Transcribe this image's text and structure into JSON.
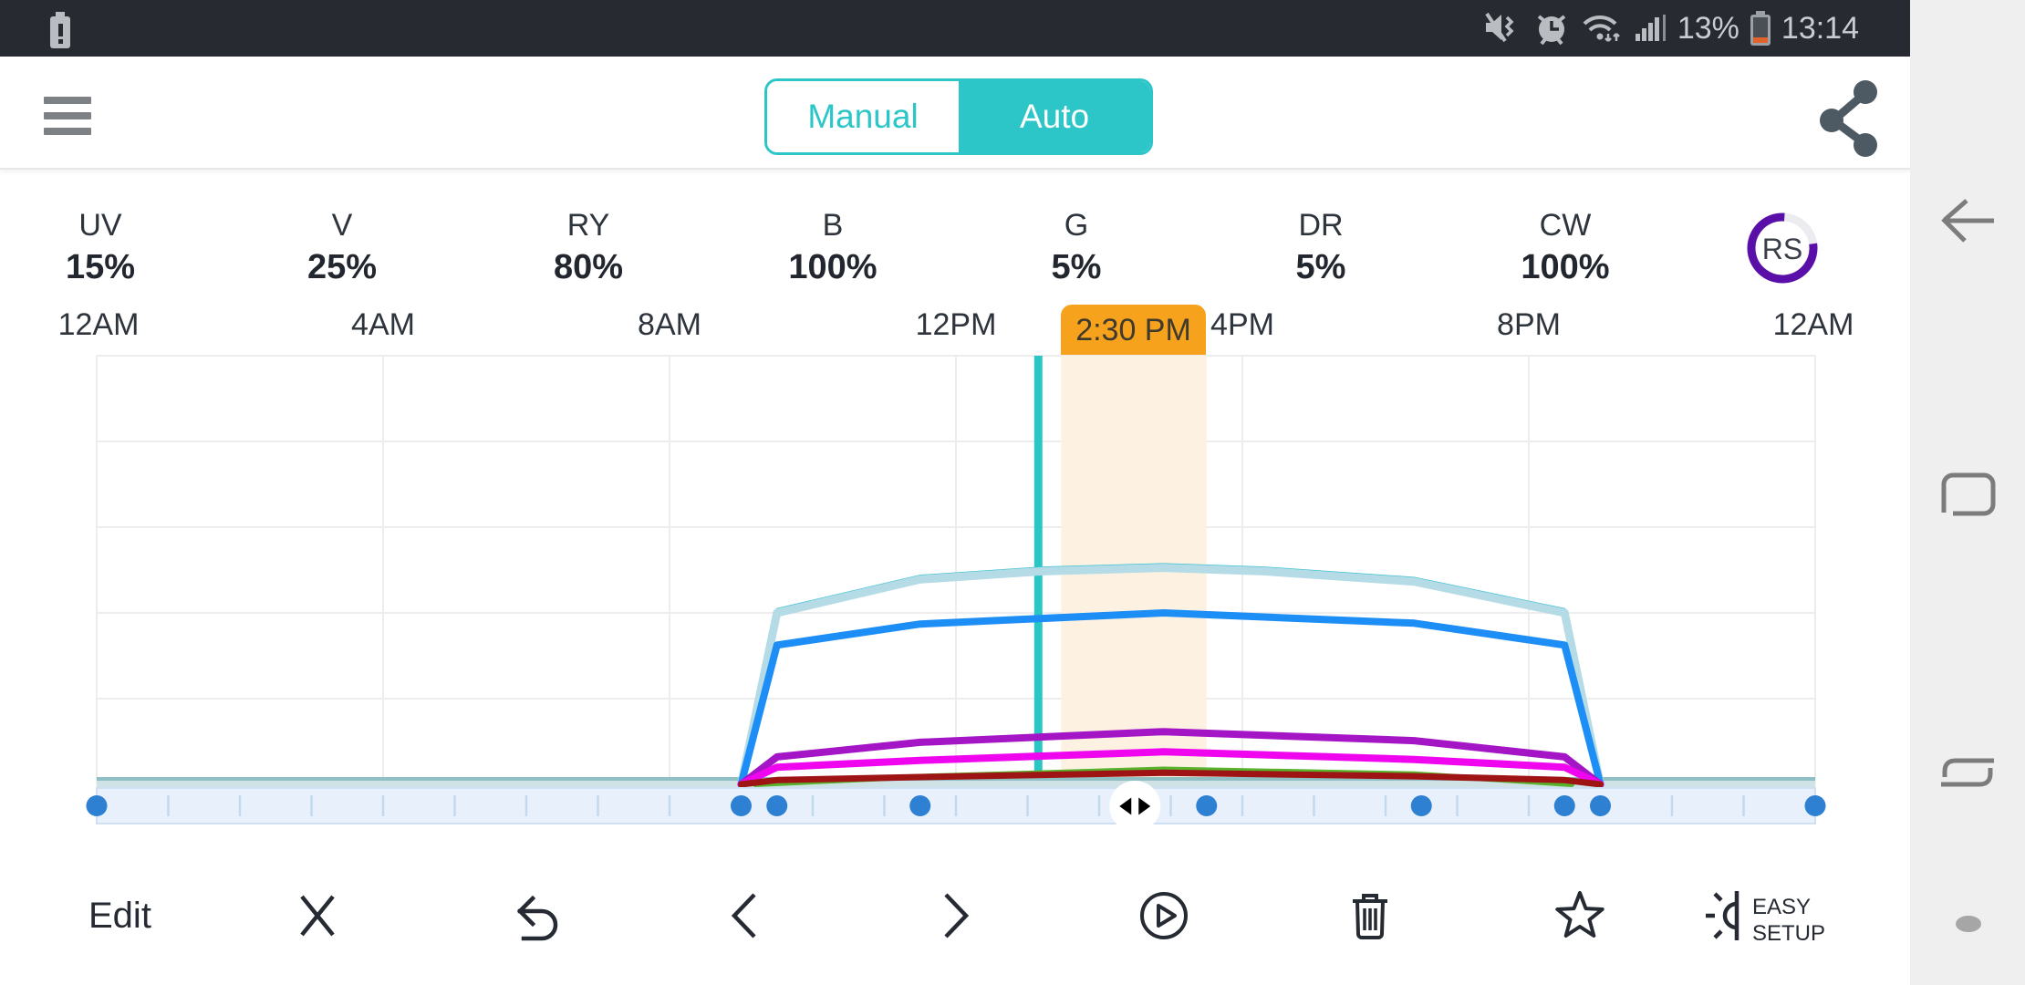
{
  "status_bar": {
    "time": "13:14",
    "battery_percent": "13%",
    "icons": [
      "battery-alert",
      "mute-vibrate",
      "alarm",
      "wifi",
      "signal-strength",
      "battery"
    ]
  },
  "header": {
    "menu_icon": "hamburger-menu",
    "toggle": {
      "options": [
        "Manual",
        "Auto"
      ],
      "selected": "Auto",
      "accent_color": "#2cc6c8"
    },
    "share_icon": "share"
  },
  "channels": {
    "items": [
      {
        "name": "UV",
        "value": "15%"
      },
      {
        "name": "V",
        "value": "25%"
      },
      {
        "name": "RY",
        "value": "80%"
      },
      {
        "name": "B",
        "value": "100%"
      },
      {
        "name": "G",
        "value": "5%"
      },
      {
        "name": "DR",
        "value": "5%"
      },
      {
        "name": "CW",
        "value": "100%"
      }
    ],
    "rs_badge": {
      "label": "RS",
      "ring_color": "#5a0fa8",
      "track_color": "#ececf0",
      "progress": 0.78
    }
  },
  "time_axis": {
    "labels": [
      "12AM",
      "4AM",
      "8AM",
      "12PM",
      "4PM",
      "8PM",
      "12AM"
    ],
    "marker_label": "2:30 PM",
    "marker_color": "#f6a21d"
  },
  "chart_data": {
    "type": "line",
    "x_unit": "hour",
    "x_range": [
      0,
      24
    ],
    "y_range_pct": [
      0,
      100
    ],
    "grid_step_pct": 20,
    "grid_step_hours": 4,
    "grid_on": true,
    "current_time_hour": 13.15,
    "current_time_color": "#2cc5c6",
    "marker_hour": 14.5,
    "marker_band_hours": [
      13.47,
      15.5
    ],
    "band_color": "#fdf2e2",
    "baseline": {
      "edge_color": "#8fbfc2",
      "color": "#cfe3e7"
    },
    "series": [
      {
        "name": "pale-blue",
        "color": "#b5dbe7",
        "edge_color": "#41c2d3",
        "width": 9,
        "points": [
          [
            9,
            0
          ],
          [
            9.5,
            40
          ],
          [
            11.5,
            47.8
          ],
          [
            13.2,
            49.7
          ],
          [
            14.9,
            50.5
          ],
          [
            16.3,
            49.7
          ],
          [
            18.4,
            47.3
          ],
          [
            20.5,
            40
          ],
          [
            21,
            0
          ]
        ]
      },
      {
        "name": "blue",
        "color": "#1e8ef7",
        "width": 8,
        "points": [
          [
            9,
            0
          ],
          [
            9.5,
            32.5
          ],
          [
            11.5,
            37.4
          ],
          [
            14.9,
            40
          ],
          [
            18.4,
            37.6
          ],
          [
            20.5,
            32.5
          ],
          [
            21,
            0
          ]
        ]
      },
      {
        "name": "purple",
        "color": "#a415c6",
        "width": 8,
        "points": [
          [
            9,
            0
          ],
          [
            9.5,
            6.4
          ],
          [
            11.5,
            9.8
          ],
          [
            14.9,
            12.3
          ],
          [
            18.4,
            10.2
          ],
          [
            20.5,
            6.4
          ],
          [
            21,
            0
          ]
        ]
      },
      {
        "name": "magenta",
        "color": "#ef06ef",
        "width": 8,
        "points": [
          [
            9,
            0
          ],
          [
            9.5,
            4
          ],
          [
            11.5,
            5.6
          ],
          [
            14.9,
            7.6
          ],
          [
            18.4,
            5.8
          ],
          [
            20.5,
            4
          ],
          [
            21,
            0
          ]
        ]
      },
      {
        "name": "green",
        "color": "#58b32d",
        "width": 6,
        "points": [
          [
            9.2,
            0
          ],
          [
            11.5,
            1.8
          ],
          [
            14.9,
            3.5
          ],
          [
            18.4,
            2.4
          ],
          [
            20.6,
            0
          ]
        ]
      },
      {
        "name": "dark-red",
        "color": "#9e1414",
        "width": 7,
        "points": [
          [
            9,
            0
          ],
          [
            9.5,
            1
          ],
          [
            11.5,
            1.7
          ],
          [
            14.9,
            2.7
          ],
          [
            18.4,
            1.9
          ],
          [
            20.5,
            1
          ],
          [
            21,
            0
          ]
        ]
      }
    ],
    "schedule_dots_hours": [
      0,
      9,
      9.5,
      11.5,
      15.5,
      18.5,
      20.5,
      21,
      24
    ],
    "dot_color": "#2e80d2",
    "strip": {
      "bg": "#e8f1fb",
      "border": "#cfe0f2",
      "tick_color": "#c2d9ee"
    },
    "handle": {
      "shape": "circle-with-left-right-arrows",
      "color": "#f6a21d"
    }
  },
  "toolbar": {
    "edit": "Edit",
    "easy_setup": [
      "EASY",
      "SETUP"
    ],
    "icons": [
      "close",
      "undo",
      "previous",
      "next",
      "play",
      "delete",
      "favorite",
      "easy-setup"
    ]
  },
  "nav_sidebar": {
    "icons": [
      "back",
      "recent-apps",
      "multi-window",
      "handle-dot"
    ]
  }
}
